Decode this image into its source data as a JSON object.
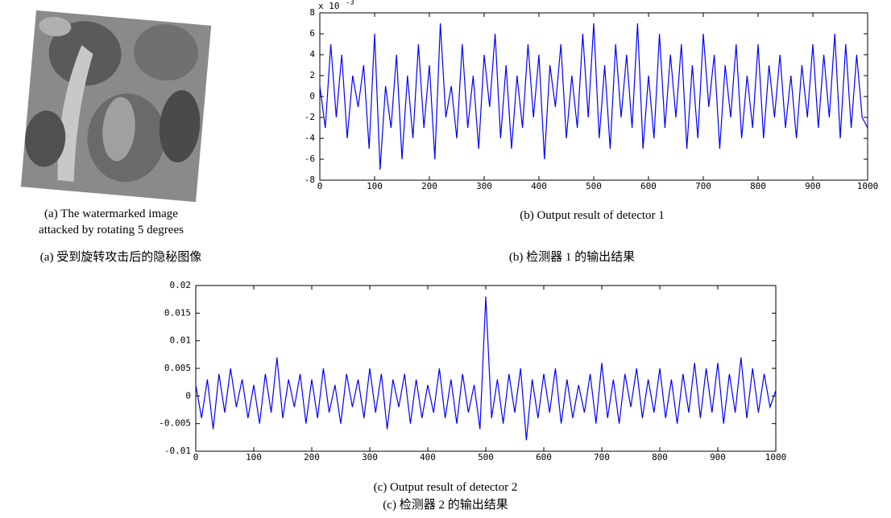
{
  "chart_data": [
    {
      "type": "line",
      "y_multiplier": "x 10",
      "y_multiplier_exp": "-3",
      "xlim": [
        0,
        1000
      ],
      "xticks": [
        0,
        100,
        200,
        300,
        400,
        500,
        600,
        700,
        800,
        900,
        1000
      ],
      "ylim": [
        -8,
        8
      ],
      "yticks": [
        -8,
        -6,
        -4,
        -2,
        0,
        2,
        4,
        6,
        8
      ],
      "series": [
        {
          "color": "#0000ff",
          "x": [
            0,
            10,
            20,
            30,
            40,
            50,
            60,
            70,
            80,
            90,
            100,
            110,
            120,
            130,
            140,
            150,
            160,
            170,
            180,
            190,
            200,
            210,
            220,
            230,
            240,
            250,
            260,
            270,
            280,
            290,
            300,
            310,
            320,
            330,
            340,
            350,
            360,
            370,
            380,
            390,
            400,
            410,
            420,
            430,
            440,
            450,
            460,
            470,
            480,
            490,
            500,
            510,
            520,
            530,
            540,
            550,
            560,
            570,
            580,
            590,
            600,
            610,
            620,
            630,
            640,
            650,
            660,
            670,
            680,
            690,
            700,
            710,
            720,
            730,
            740,
            750,
            760,
            770,
            780,
            790,
            800,
            810,
            820,
            830,
            840,
            850,
            860,
            870,
            880,
            890,
            900,
            910,
            920,
            930,
            940,
            950,
            960,
            970,
            980,
            990,
            1000
          ],
          "values": [
            1,
            -3,
            5,
            -2,
            4,
            -4,
            2,
            -1,
            3,
            -5,
            6,
            -7,
            1,
            -3,
            4,
            -6,
            2,
            -4,
            5,
            -3,
            3,
            -6,
            7,
            -2,
            1,
            -4,
            5,
            -3,
            2,
            -5,
            4,
            -1,
            6,
            -4,
            3,
            -5,
            2,
            -3,
            5,
            -2,
            4,
            -6,
            3,
            -1,
            5,
            -4,
            2,
            -3,
            6,
            -2,
            7,
            -4,
            3,
            -5,
            5,
            -2,
            4,
            -3,
            7,
            -5,
            2,
            -4,
            6,
            -3,
            4,
            -2,
            5,
            -5,
            3,
            -4,
            6,
            -1,
            4,
            -5,
            3,
            -2,
            5,
            -4,
            2,
            -3,
            5,
            -4,
            3,
            -2,
            4,
            -3,
            2,
            -4,
            3,
            -2,
            5,
            -3,
            4,
            -2,
            6,
            -4,
            5,
            -3,
            4,
            -2,
            -3
          ]
        }
      ]
    },
    {
      "type": "line",
      "xlim": [
        0,
        1000
      ],
      "xticks": [
        0,
        100,
        200,
        300,
        400,
        500,
        600,
        700,
        800,
        900,
        1000
      ],
      "ylim": [
        -0.01,
        0.02
      ],
      "yticks": [
        -0.01,
        -0.005,
        0,
        0.005,
        0.01,
        0.015,
        0.02
      ],
      "series": [
        {
          "color": "#0000ff",
          "x": [
            0,
            10,
            20,
            30,
            40,
            50,
            60,
            70,
            80,
            90,
            100,
            110,
            120,
            130,
            140,
            150,
            160,
            170,
            180,
            190,
            200,
            210,
            220,
            230,
            240,
            250,
            260,
            270,
            280,
            290,
            300,
            310,
            320,
            330,
            340,
            350,
            360,
            370,
            380,
            390,
            400,
            410,
            420,
            430,
            440,
            450,
            460,
            470,
            480,
            490,
            500,
            510,
            520,
            530,
            540,
            550,
            560,
            570,
            580,
            590,
            600,
            610,
            620,
            630,
            640,
            650,
            660,
            670,
            680,
            690,
            700,
            710,
            720,
            730,
            740,
            750,
            760,
            770,
            780,
            790,
            800,
            810,
            820,
            830,
            840,
            850,
            860,
            870,
            880,
            890,
            900,
            910,
            920,
            930,
            940,
            950,
            960,
            970,
            980,
            990,
            1000
          ],
          "values": [
            0.002,
            -0.004,
            0.003,
            -0.006,
            0.004,
            -0.003,
            0.005,
            -0.002,
            0.003,
            -0.004,
            0.002,
            -0.005,
            0.004,
            -0.003,
            0.007,
            -0.004,
            0.003,
            -0.002,
            0.004,
            -0.005,
            0.003,
            -0.004,
            0.005,
            -0.003,
            0.002,
            -0.005,
            0.004,
            -0.002,
            0.003,
            -0.004,
            0.005,
            -0.003,
            0.004,
            -0.006,
            0.003,
            -0.002,
            0.004,
            -0.005,
            0.003,
            -0.004,
            0.002,
            -0.003,
            0.005,
            -0.004,
            0.003,
            -0.005,
            0.004,
            -0.003,
            0.002,
            -0.006,
            0.018,
            -0.004,
            0.003,
            -0.005,
            0.004,
            -0.003,
            0.005,
            -0.008,
            0.003,
            -0.004,
            0.004,
            -0.003,
            0.005,
            -0.005,
            0.003,
            -0.004,
            0.002,
            -0.003,
            0.004,
            -0.005,
            0.006,
            -0.004,
            0.003,
            -0.005,
            0.004,
            -0.002,
            0.005,
            -0.004,
            0.003,
            -0.003,
            0.005,
            -0.004,
            0.003,
            -0.005,
            0.004,
            -0.003,
            0.006,
            -0.004,
            0.005,
            -0.003,
            0.006,
            -0.005,
            0.004,
            -0.003,
            0.007,
            -0.004,
            0.005,
            -0.003,
            0.004,
            -0.002,
            0.001
          ]
        }
      ]
    }
  ],
  "captions": {
    "a_en_1": "(a) The watermarked image",
    "a_en_2": "attacked by rotating 5 degrees",
    "a_zh": "(a) 受到旋转攻击后的隐秘图像",
    "b_en": "(b) Output result of detector 1",
    "b_zh": "(b)  检测器 1 的输出结果",
    "c_en": "(c) Output result of detector 2",
    "c_zh": "(c)  检测器 2 的输出结果"
  }
}
